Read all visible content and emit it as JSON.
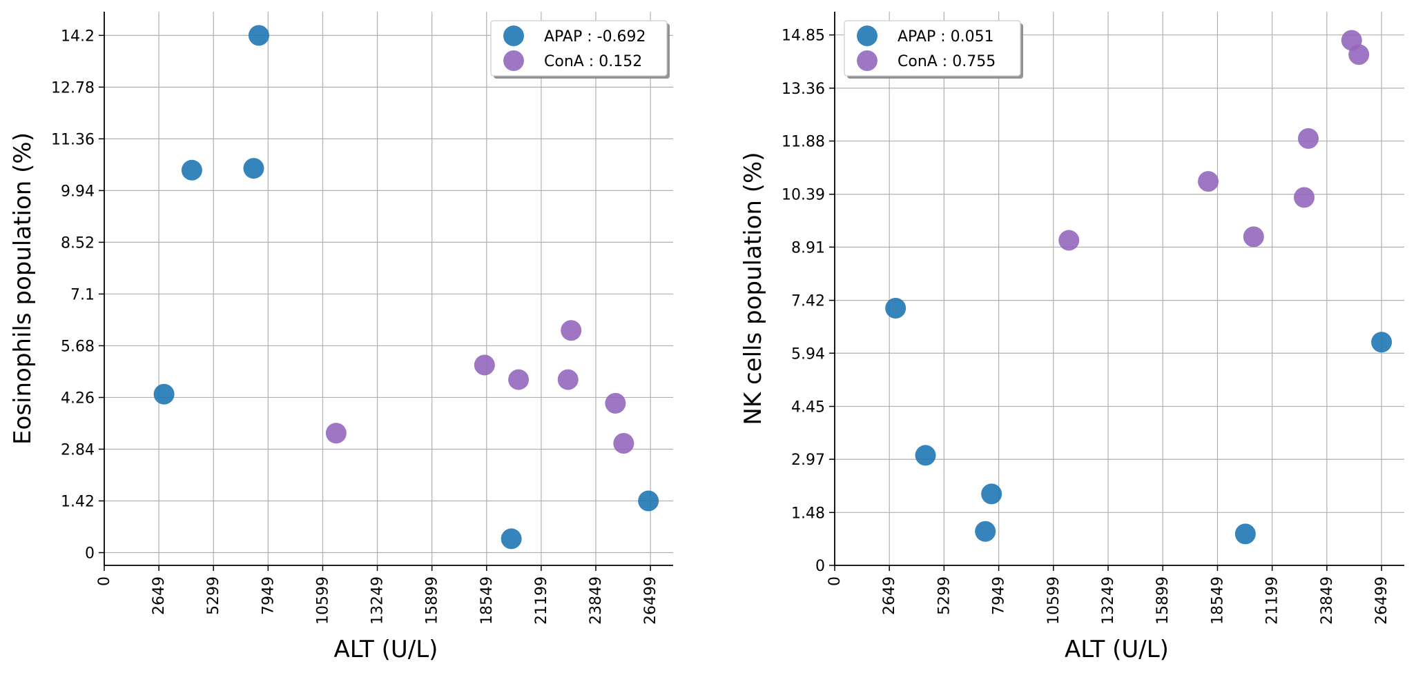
{
  "colors": {
    "apap": "#1f77b4",
    "cona": "#9467bd"
  },
  "chart_data": [
    {
      "type": "scatter",
      "xlabel": "ALT (U/L)",
      "ylabel": "Eosinophils population (%)",
      "xlim": [
        0,
        27600
      ],
      "ylim": [
        -0.35,
        14.85
      ],
      "xticks": [
        0,
        2649,
        5299,
        7949,
        10599,
        13249,
        15899,
        18549,
        21199,
        23849,
        26499
      ],
      "xtick_labels": [
        "0",
        "2649",
        "5299",
        "7949",
        "10599",
        "13249",
        "15899",
        "18549",
        "21199",
        "23849",
        "26499"
      ],
      "yticks": [
        0,
        1.42,
        2.84,
        4.26,
        5.68,
        7.1,
        8.52,
        9.94,
        11.36,
        12.78,
        14.2
      ],
      "ytick_labels": [
        "0",
        "1.42",
        "2.84",
        "4.26",
        "5.68",
        "7.1",
        "8.52",
        "9.94",
        "11.36",
        "12.78",
        "14.2"
      ],
      "legend_position": "top-right",
      "series": [
        {
          "name": "APAP",
          "legend_label": "APAP : -0.692",
          "color_key": "apap",
          "x": [
            2900,
            4250,
            7250,
            7500,
            19750,
            26400
          ],
          "y": [
            4.35,
            10.5,
            10.55,
            14.2,
            0.38,
            1.42
          ]
        },
        {
          "name": "ConA",
          "legend_label": "ConA : 0.152",
          "color_key": "cona",
          "x": [
            11250,
            18450,
            20100,
            22500,
            22650,
            24800,
            25200
          ],
          "y": [
            3.28,
            5.15,
            4.75,
            4.75,
            6.1,
            4.1,
            3.0
          ]
        }
      ]
    },
    {
      "type": "scatter",
      "xlabel": "ALT (U/L)",
      "ylabel": "NK cells population (%)",
      "xlim": [
        0,
        27600
      ],
      "ylim": [
        0,
        15.5
      ],
      "xticks": [
        0,
        2649,
        5299,
        7949,
        10599,
        13249,
        15899,
        18549,
        21199,
        23849,
        26499
      ],
      "xtick_labels": [
        "0",
        "2649",
        "5299",
        "7949",
        "10599",
        "13249",
        "15899",
        "18549",
        "21199",
        "23849",
        "26499"
      ],
      "yticks": [
        0,
        1.48,
        2.97,
        4.45,
        5.94,
        7.42,
        8.91,
        10.39,
        11.88,
        13.36,
        14.85
      ],
      "ytick_labels": [
        "0",
        "1.48",
        "2.97",
        "4.45",
        "5.94",
        "7.42",
        "8.91",
        "10.39",
        "11.88",
        "13.36",
        "14.85"
      ],
      "legend_position": "top-left",
      "series": [
        {
          "name": "APAP",
          "legend_label": "APAP : 0.051",
          "color_key": "apap",
          "x": [
            2950,
            4400,
            7300,
            7600,
            19900,
            26500
          ],
          "y": [
            7.2,
            3.08,
            0.95,
            2.0,
            0.88,
            6.25
          ]
        },
        {
          "name": "ConA",
          "legend_label": "ConA : 0.755",
          "color_key": "cona",
          "x": [
            11350,
            18100,
            20300,
            22750,
            22950,
            25050,
            25400
          ],
          "y": [
            9.1,
            10.75,
            9.2,
            10.3,
            11.95,
            14.7,
            14.3
          ]
        }
      ]
    }
  ]
}
